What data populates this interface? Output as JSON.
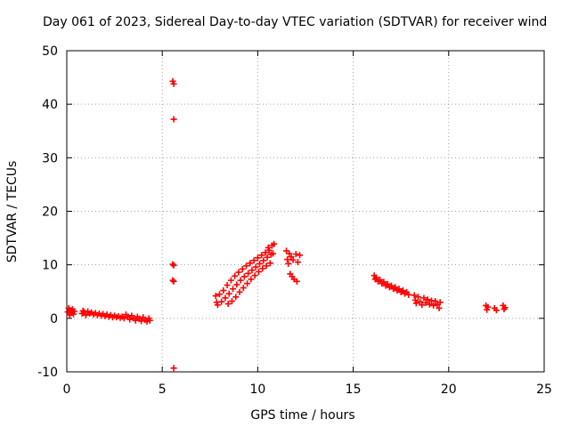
{
  "chart_data": {
    "type": "scatter",
    "title": "Day 061 of 2023, Sidereal Day-to-day VTEC variation (SDTVAR) for receiver wind",
    "xlabel": "GPS time / hours",
    "ylabel": "SDTVAR / TECUs",
    "xlim": [
      0,
      25
    ],
    "ylim": [
      -10,
      50
    ],
    "xticks": [
      0,
      5,
      10,
      15,
      20,
      25
    ],
    "yticks": [
      -10,
      0,
      10,
      20,
      30,
      40,
      50
    ],
    "grid": true,
    "marker": "+",
    "color": "#ff0000",
    "series": [
      {
        "name": "SDTVAR",
        "points": [
          [
            0.05,
            1.2
          ],
          [
            0.1,
            1.9
          ],
          [
            0.15,
            0.6
          ],
          [
            0.2,
            1.5
          ],
          [
            0.25,
            1.0
          ],
          [
            0.3,
            1.7
          ],
          [
            0.35,
            0.8
          ],
          [
            0.4,
            1.3
          ],
          [
            0.8,
            0.9
          ],
          [
            0.85,
            1.4
          ],
          [
            0.9,
            1.2
          ],
          [
            1.0,
            0.6
          ],
          [
            1.1,
            1.3
          ],
          [
            1.2,
            0.9
          ],
          [
            1.3,
            1.1
          ],
          [
            1.4,
            0.7
          ],
          [
            1.5,
            1.0
          ],
          [
            1.6,
            0.6
          ],
          [
            1.7,
            0.9
          ],
          [
            1.8,
            0.5
          ],
          [
            1.9,
            0.8
          ],
          [
            2.0,
            0.4
          ],
          [
            2.1,
            0.7
          ],
          [
            2.2,
            0.3
          ],
          [
            2.3,
            0.6
          ],
          [
            2.4,
            0.2
          ],
          [
            2.5,
            0.5
          ],
          [
            2.6,
            0.2
          ],
          [
            2.7,
            0.4
          ],
          [
            2.8,
            0.1
          ],
          [
            2.9,
            0.3
          ],
          [
            3.0,
            0.0
          ],
          [
            3.1,
            0.7
          ],
          [
            3.2,
            0.3
          ],
          [
            3.3,
            -0.2
          ],
          [
            3.4,
            0.5
          ],
          [
            3.5,
            0.0
          ],
          [
            3.6,
            -0.4
          ],
          [
            3.7,
            0.3
          ],
          [
            3.8,
            -0.1
          ],
          [
            3.9,
            -0.5
          ],
          [
            4.0,
            0.2
          ],
          [
            4.1,
            -0.3
          ],
          [
            4.2,
            -0.6
          ],
          [
            4.3,
            0.0
          ],
          [
            4.35,
            -0.4
          ],
          [
            5.55,
            44.3
          ],
          [
            5.6,
            43.8
          ],
          [
            5.6,
            37.2
          ],
          [
            5.55,
            10.1
          ],
          [
            5.6,
            9.9
          ],
          [
            5.55,
            7.1
          ],
          [
            5.6,
            6.9
          ],
          [
            5.6,
            -9.3
          ],
          [
            7.8,
            4.2
          ],
          [
            7.85,
            3.0
          ],
          [
            7.9,
            2.5
          ],
          [
            8.0,
            4.5
          ],
          [
            8.1,
            3.1
          ],
          [
            8.2,
            5.2
          ],
          [
            8.3,
            3.8
          ],
          [
            8.4,
            6.2
          ],
          [
            8.45,
            2.7
          ],
          [
            8.5,
            4.6
          ],
          [
            8.6,
            7.1
          ],
          [
            8.65,
            3.2
          ],
          [
            8.7,
            5.5
          ],
          [
            8.8,
            7.9
          ],
          [
            8.85,
            4.0
          ],
          [
            8.9,
            6.3
          ],
          [
            9.0,
            8.6
          ],
          [
            9.05,
            4.9
          ],
          [
            9.1,
            7.1
          ],
          [
            9.2,
            9.2
          ],
          [
            9.25,
            5.7
          ],
          [
            9.3,
            7.8
          ],
          [
            9.4,
            9.8
          ],
          [
            9.45,
            6.5
          ],
          [
            9.5,
            8.4
          ],
          [
            9.6,
            10.3
          ],
          [
            9.65,
            7.3
          ],
          [
            9.7,
            9.0
          ],
          [
            9.8,
            10.8
          ],
          [
            9.85,
            8.0
          ],
          [
            9.9,
            9.6
          ],
          [
            10.0,
            11.3
          ],
          [
            10.05,
            8.7
          ],
          [
            10.1,
            10.2
          ],
          [
            10.2,
            11.8
          ],
          [
            10.25,
            9.3
          ],
          [
            10.3,
            10.8
          ],
          [
            10.4,
            12.3
          ],
          [
            10.45,
            9.8
          ],
          [
            10.5,
            11.4
          ],
          [
            10.55,
            13.2
          ],
          [
            10.6,
            12.7
          ],
          [
            10.65,
            10.3
          ],
          [
            10.7,
            11.9
          ],
          [
            10.75,
            13.6
          ],
          [
            10.8,
            12.1
          ],
          [
            10.85,
            13.9
          ],
          [
            11.5,
            12.6
          ],
          [
            11.55,
            11.0
          ],
          [
            11.6,
            10.2
          ],
          [
            11.65,
            12.1
          ],
          [
            11.7,
            8.3
          ],
          [
            11.75,
            11.5
          ],
          [
            11.8,
            7.8
          ],
          [
            11.85,
            10.9
          ],
          [
            11.9,
            7.3
          ],
          [
            12.0,
            12.0
          ],
          [
            12.05,
            6.9
          ],
          [
            12.1,
            10.5
          ],
          [
            12.2,
            11.8
          ],
          [
            16.1,
            8.0
          ],
          [
            16.15,
            7.3
          ],
          [
            16.2,
            7.6
          ],
          [
            16.3,
            6.9
          ],
          [
            16.4,
            7.2
          ],
          [
            16.5,
            6.5
          ],
          [
            16.6,
            6.8
          ],
          [
            16.7,
            6.1
          ],
          [
            16.8,
            6.4
          ],
          [
            16.9,
            5.8
          ],
          [
            17.0,
            6.1
          ],
          [
            17.1,
            5.5
          ],
          [
            17.2,
            5.8
          ],
          [
            17.3,
            5.2
          ],
          [
            17.4,
            5.5
          ],
          [
            17.5,
            4.9
          ],
          [
            17.6,
            5.2
          ],
          [
            17.7,
            4.6
          ],
          [
            17.8,
            4.9
          ],
          [
            17.9,
            4.4
          ],
          [
            18.2,
            4.3
          ],
          [
            18.25,
            3.4
          ],
          [
            18.3,
            2.8
          ],
          [
            18.4,
            4.0
          ],
          [
            18.5,
            3.1
          ],
          [
            18.6,
            2.5
          ],
          [
            18.7,
            3.8
          ],
          [
            18.8,
            2.9
          ],
          [
            18.9,
            3.5
          ],
          [
            19.0,
            2.6
          ],
          [
            19.1,
            3.3
          ],
          [
            19.2,
            2.4
          ],
          [
            19.3,
            3.2
          ],
          [
            19.4,
            2.6
          ],
          [
            19.5,
            1.9
          ],
          [
            19.55,
            3.0
          ],
          [
            21.95,
            2.4
          ],
          [
            22.0,
            1.6
          ],
          [
            22.05,
            2.1
          ],
          [
            22.4,
            1.9
          ],
          [
            22.5,
            1.5
          ],
          [
            22.85,
            2.4
          ],
          [
            22.9,
            1.7
          ],
          [
            22.95,
            2.0
          ]
        ]
      }
    ]
  }
}
